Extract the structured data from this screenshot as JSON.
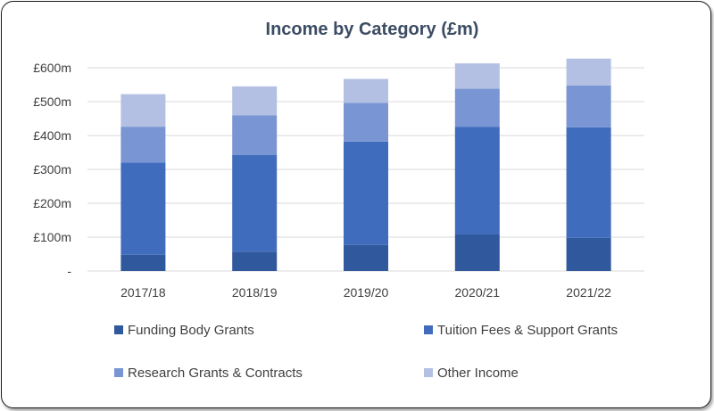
{
  "colors": {
    "funding": "#30589d",
    "tuition": "#3f6cbc",
    "research": "#7995d3",
    "other": "#b3c0e3",
    "title": "#3b4c63",
    "axis_text": "#404040",
    "gridline": "#dadada"
  },
  "chart_data": {
    "type": "bar",
    "stacked": true,
    "title": "Income by Category (£m)",
    "xlabel": "",
    "ylabel": "",
    "categories": [
      "2017/18",
      "2018/19",
      "2019/20",
      "2020/21",
      "2021/22"
    ],
    "y_ticks": [
      "-",
      "£100m",
      "£200m",
      "£300m",
      "£400m",
      "£500m",
      "£600m"
    ],
    "y_tick_values": [
      0,
      100,
      200,
      300,
      400,
      500,
      600
    ],
    "ylim": [
      0,
      600
    ],
    "grid": true,
    "legend_position": "bottom",
    "series": [
      {
        "name": "Funding Body Grants",
        "color_key": "funding",
        "values": [
          48,
          57,
          77,
          108,
          98
        ]
      },
      {
        "name": "Tuition Fees & Support Grants",
        "color_key": "tuition",
        "values": [
          272,
          286,
          305,
          317,
          326
        ]
      },
      {
        "name": "Research Grants & Contracts",
        "color_key": "research",
        "values": [
          106,
          117,
          114,
          113,
          124
        ]
      },
      {
        "name": "Other Income",
        "color_key": "other",
        "values": [
          96,
          85,
          71,
          75,
          79
        ]
      }
    ]
  }
}
